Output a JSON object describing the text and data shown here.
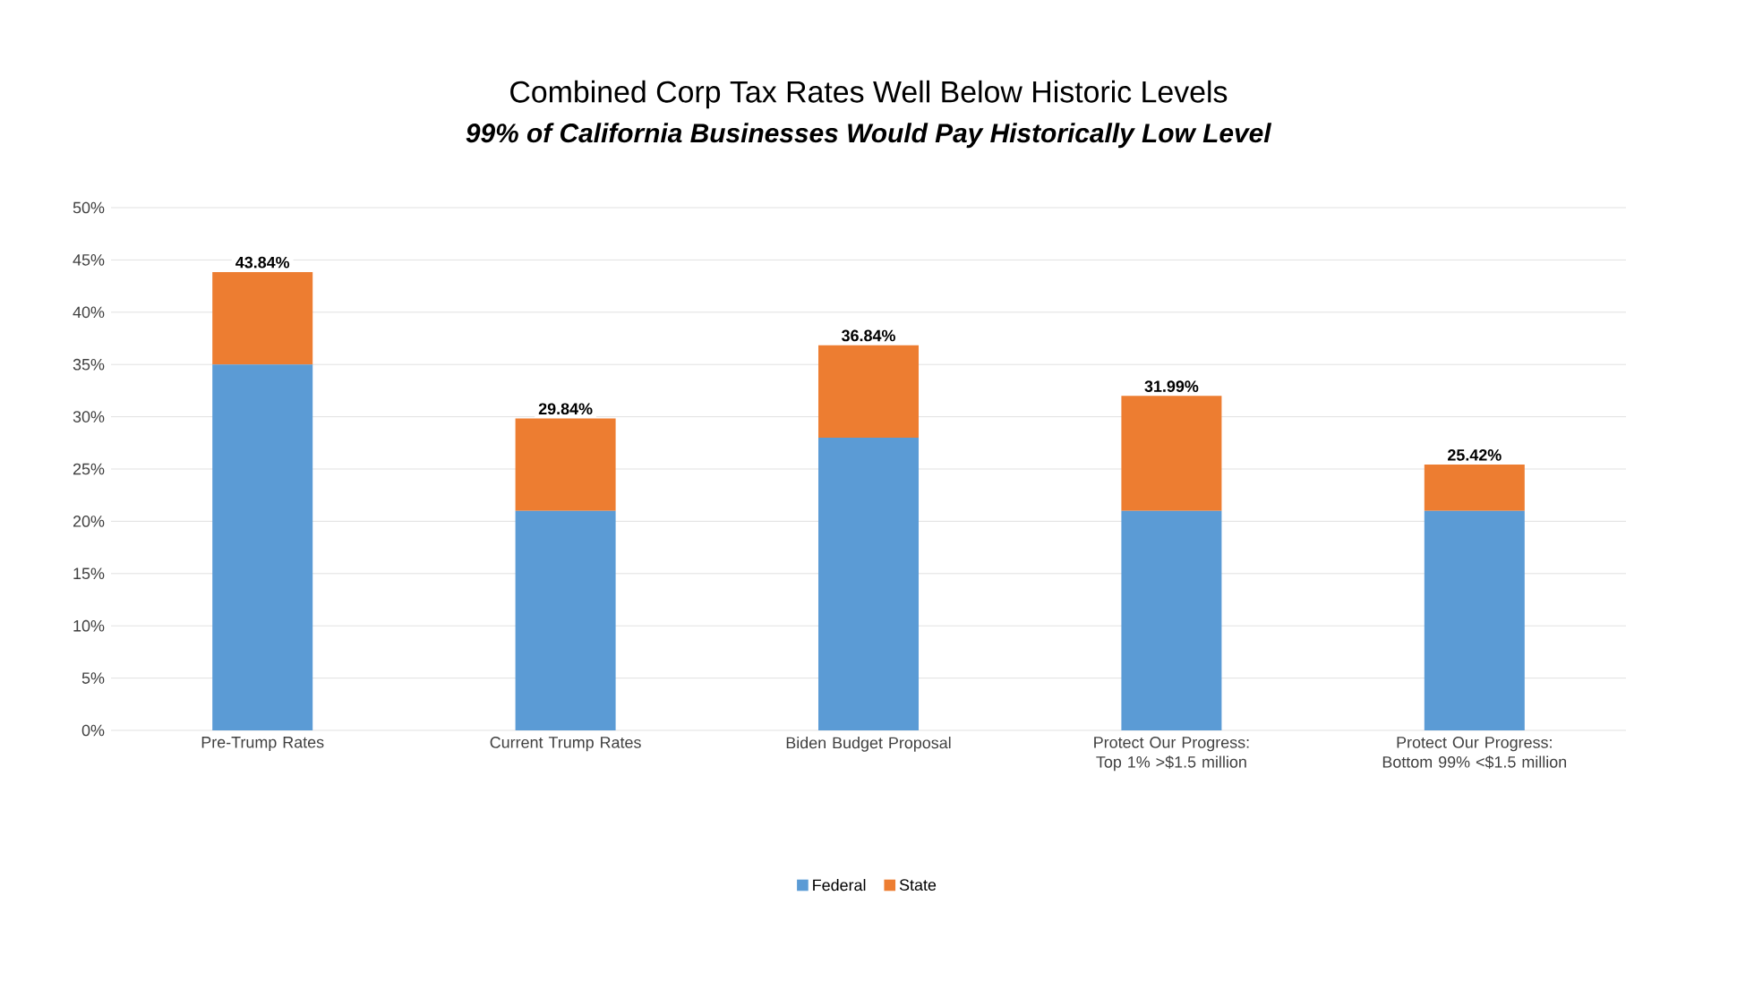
{
  "chart_data": {
    "type": "bar",
    "stacked": true,
    "title": "Combined Corp Tax Rates Well Below Historic Levels",
    "subtitle": "*99% of California Businesses Would Pay Historically Low Level*",
    "categories": [
      "Pre-Trump Rates",
      "Current Trump Rates",
      "Biden Budget Proposal",
      "Protect Our Progress: Top 1% >$1.5 million",
      "Protect Our Progress: Bottom 99% <$1.5 million"
    ],
    "series": [
      {
        "name": "Federal",
        "color": "#5b9bd5",
        "values": [
          35,
          21,
          28,
          21,
          21
        ]
      },
      {
        "name": "State",
        "color": "#ed7d31",
        "values": [
          8.84,
          8.84,
          8.84,
          10.99,
          4.42
        ]
      }
    ],
    "totals": [
      "43.84%",
      "29.84%",
      "36.84%",
      "31.99%",
      "25.42%"
    ],
    "ylim": [
      0,
      50
    ],
    "yticks": [
      {
        "value": 0,
        "label": "0%"
      },
      {
        "value": 5,
        "label": "5%"
      },
      {
        "value": 10,
        "label": "10%"
      },
      {
        "value": 15,
        "label": "15%"
      },
      {
        "value": 20,
        "label": "20%"
      },
      {
        "value": 25,
        "label": "25%"
      },
      {
        "value": 30,
        "label": "30%"
      },
      {
        "value": 35,
        "label": "35%"
      },
      {
        "value": 40,
        "label": "40%"
      },
      {
        "value": 45,
        "label": "45%"
      },
      {
        "value": 50,
        "label": "50%"
      }
    ],
    "grid": "y",
    "legend": "bottom"
  }
}
